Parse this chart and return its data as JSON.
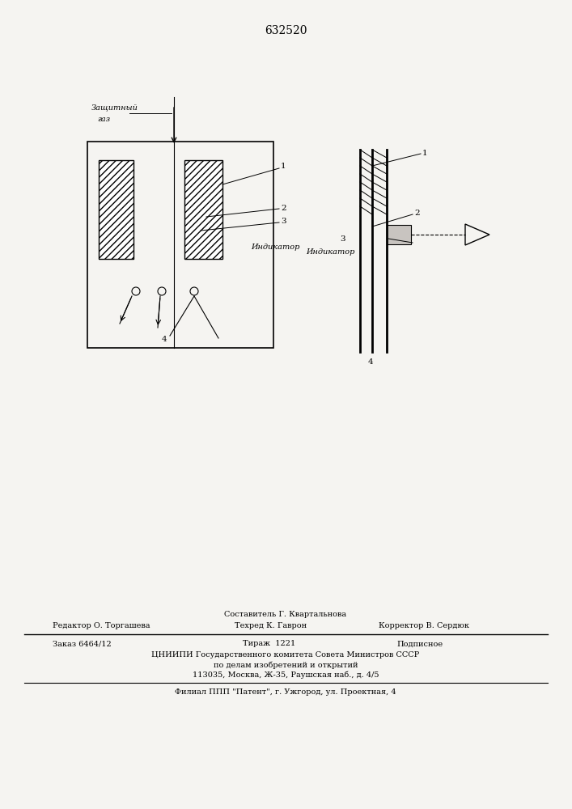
{
  "patent_number": "632520",
  "bg_color": "#f5f4f1",
  "title_fontsize": 10,
  "label_fontsize": 7.5,
  "italic_label_fontsize": 7,
  "footer_line1": "Составитель Г. Квартальнова",
  "footer_line2_left": "Редактор О. Торгашева",
  "footer_line2_mid": "Техред К. Гаврон",
  "footer_line2_right": "Корректор В. Сердюк",
  "footer_line3_left": "Заказ 6464/12",
  "footer_line3_mid": "Тираж  1221",
  "footer_line3_right": "Подписное",
  "footer_line4": "ЦНИИПИ Государственного комитета Совета Министров СССР",
  "footer_line5": "по делам изобретений и открытий",
  "footer_line6": "113035, Москва, Ж-35, Раушская наб., д. 4/5",
  "footer_line7": "Филиал ППП \"Патент\", г. Ужгород, ул. Проектная, 4",
  "label_zashchitny": "Защитный",
  "label_gaz": "газ",
  "label_indikator": "Индикатор"
}
